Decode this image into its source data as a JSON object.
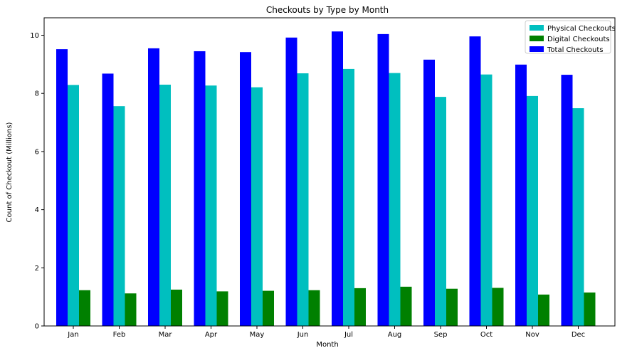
{
  "chart_data": {
    "type": "bar",
    "title": "Checkouts by Type by Month",
    "xlabel": "Month",
    "ylabel": "Count of Checkout (Millions)",
    "categories": [
      "Jan",
      "Feb",
      "Mar",
      "Apr",
      "May",
      "Jun",
      "Jul",
      "Aug",
      "Sep",
      "Oct",
      "Nov",
      "Dec"
    ],
    "ylim": [
      0,
      10.6
    ],
    "yticks": [
      "0",
      "2",
      "4",
      "6",
      "8",
      "10"
    ],
    "grid": false,
    "legend_position": "top-right",
    "series": [
      {
        "name": "Total Checkouts",
        "color": "#0000ff",
        "values": [
          9.52,
          8.68,
          9.55,
          9.45,
          9.42,
          9.92,
          10.13,
          10.04,
          9.16,
          9.96,
          8.99,
          8.64
        ]
      },
      {
        "name": "Physical Checkouts",
        "color": "#00bfbf",
        "values": [
          8.29,
          7.56,
          8.3,
          8.27,
          8.21,
          8.69,
          8.84,
          8.7,
          7.88,
          8.65,
          7.91,
          7.49
        ]
      },
      {
        "name": "Digital Checkouts",
        "color": "#008000",
        "values": [
          1.23,
          1.12,
          1.25,
          1.19,
          1.21,
          1.23,
          1.3,
          1.35,
          1.28,
          1.31,
          1.08,
          1.15
        ]
      }
    ],
    "legend_order": [
      "Physical Checkouts",
      "Digital Checkouts",
      "Total Checkouts"
    ]
  }
}
